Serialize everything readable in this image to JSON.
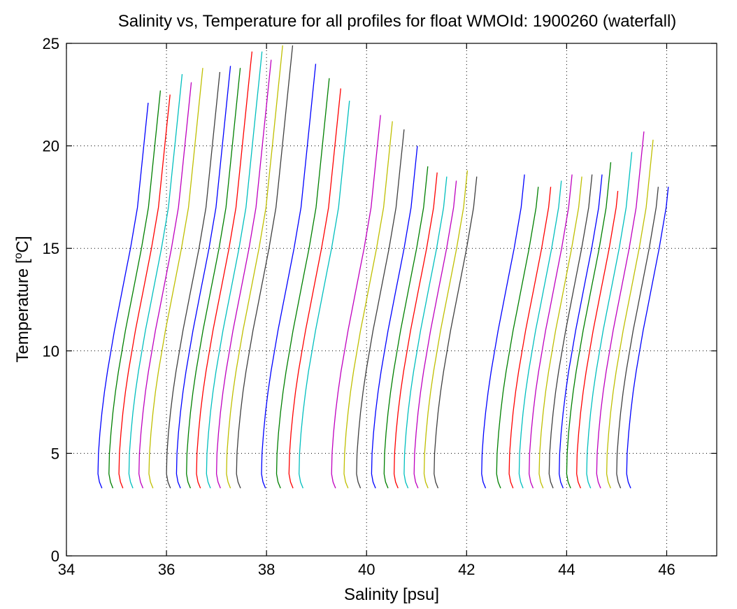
{
  "chart_data": {
    "type": "line",
    "title": "Salinity vs, Temperature for all profiles for float WMOId: 1900260 (waterfall)",
    "xlabel": "Salinity [psu]",
    "ylabel_main": "Temperature [",
    "ylabel_sup": "o",
    "ylabel_end": "C]",
    "xlim": [
      34,
      47
    ],
    "ylim": [
      0,
      25
    ],
    "xticks": [
      34,
      36,
      38,
      40,
      42,
      44,
      46
    ],
    "yticks": [
      0,
      5,
      10,
      15,
      20,
      25
    ],
    "grid": true,
    "colors": [
      "#0000ff",
      "#008000",
      "#ff0000",
      "#00bfbf",
      "#bf00bf",
      "#bfbf00",
      "#404040"
    ],
    "profile_shape": {
      "temperature": [
        3.3,
        3.6,
        4.0,
        5.0,
        6.0,
        7.0,
        8.0,
        9.0,
        10.0,
        11.0,
        12.0,
        13.0,
        14.0,
        15.0,
        16.0,
        17.0
      ],
      "salinity_offset": [
        0.08,
        0.03,
        0.0,
        0.01,
        0.04,
        0.08,
        0.13,
        0.19,
        0.26,
        0.33,
        0.41,
        0.49,
        0.57,
        0.65,
        0.72,
        0.79
      ]
    },
    "series": [
      {
        "base": 34.63,
        "tmax": 22.1
      },
      {
        "base": 34.85,
        "tmax": 22.7
      },
      {
        "base": 35.05,
        "tmax": 22.5
      },
      {
        "base": 35.25,
        "tmax": 23.5
      },
      {
        "base": 35.45,
        "tmax": 23.1
      },
      {
        "base": 35.65,
        "tmax": 23.8
      },
      {
        "base": 36.0,
        "tmax": 23.6
      },
      {
        "base": 36.2,
        "tmax": 23.9
      },
      {
        "base": 36.4,
        "tmax": 23.8
      },
      {
        "base": 36.6,
        "tmax": 24.6
      },
      {
        "base": 36.8,
        "tmax": 24.6
      },
      {
        "base": 37.0,
        "tmax": 24.2
      },
      {
        "base": 37.2,
        "tmax": 24.9
      },
      {
        "base": 37.4,
        "tmax": 24.9
      },
      {
        "base": 37.9,
        "tmax": 24.0
      },
      {
        "base": 38.2,
        "tmax": 23.3
      },
      {
        "base": 38.45,
        "tmax": 22.8
      },
      {
        "base": 38.65,
        "tmax": 22.2
      },
      {
        "base": 39.3,
        "tmax": 21.5
      },
      {
        "base": 39.55,
        "tmax": 21.2
      },
      {
        "base": 39.8,
        "tmax": 20.8
      },
      {
        "base": 40.1,
        "tmax": 20.0
      },
      {
        "base": 40.35,
        "tmax": 19.0
      },
      {
        "base": 40.55,
        "tmax": 18.7
      },
      {
        "base": 40.75,
        "tmax": 18.5
      },
      {
        "base": 40.95,
        "tmax": 18.3
      },
      {
        "base": 41.15,
        "tmax": 18.8
      },
      {
        "base": 41.35,
        "tmax": 18.5
      },
      {
        "base": 42.3,
        "tmax": 18.6
      },
      {
        "base": 42.6,
        "tmax": 18.0
      },
      {
        "base": 42.85,
        "tmax": 18.0
      },
      {
        "base": 43.05,
        "tmax": 18.3
      },
      {
        "base": 43.25,
        "tmax": 18.6
      },
      {
        "base": 43.45,
        "tmax": 18.5
      },
      {
        "base": 43.65,
        "tmax": 18.6
      },
      {
        "base": 43.85,
        "tmax": 18.6
      },
      {
        "base": 44.0,
        "tmax": 19.2
      },
      {
        "base": 44.2,
        "tmax": 17.8
      },
      {
        "base": 44.4,
        "tmax": 19.7
      },
      {
        "base": 44.6,
        "tmax": 20.7
      },
      {
        "base": 44.8,
        "tmax": 20.3
      },
      {
        "base": 45.0,
        "tmax": 18.0
      },
      {
        "base": 45.2,
        "tmax": 18.0
      }
    ]
  }
}
